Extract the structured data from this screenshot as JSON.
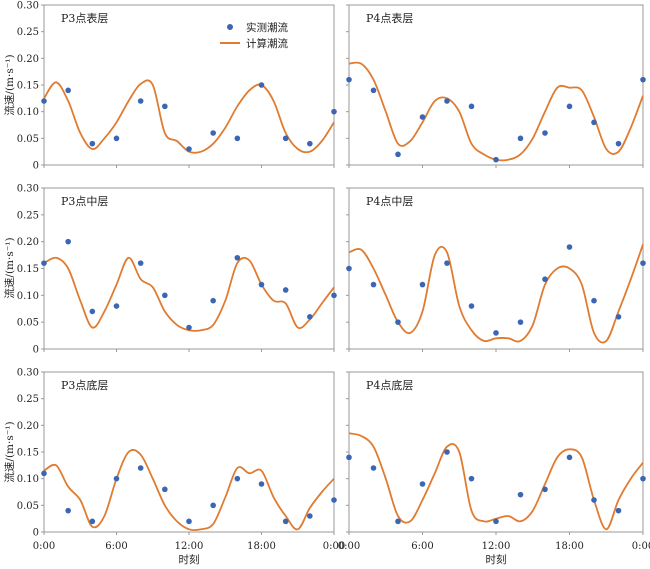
{
  "figure": {
    "legend": {
      "observed": "实测潮流",
      "computed": "计算潮流"
    },
    "ylabel": "流速/(m·s⁻¹)",
    "xlabel": "时刻",
    "colors": {
      "observed": "#3a66b4",
      "computed": "#e07b2f",
      "axis": "#9a9a9a"
    }
  },
  "chart_data": [
    {
      "type": "scatter+line",
      "title": "P3点表层",
      "x_ticks": [
        "0:00",
        "6:00",
        "12:00",
        "18:00",
        "0:00"
      ],
      "x_range_hours": [
        0,
        24
      ],
      "y_ticks": [
        "0",
        "0.05",
        "0.10",
        "0.15",
        "0.20",
        "0.25",
        "0.30"
      ],
      "ylim": [
        0,
        0.3
      ],
      "series": [
        {
          "name": "实测潮流",
          "kind": "scatter",
          "x": [
            0,
            2,
            4,
            6,
            8,
            10,
            12,
            14,
            16,
            18,
            20,
            22,
            24
          ],
          "y": [
            0.12,
            0.14,
            0.04,
            0.05,
            0.12,
            0.11,
            0.03,
            0.06,
            0.05,
            0.15,
            0.05,
            0.04,
            0.1
          ]
        },
        {
          "name": "计算潮流",
          "kind": "line",
          "x": [
            0,
            1,
            2,
            3,
            4,
            5,
            6,
            7,
            8,
            9,
            10,
            11,
            12,
            13,
            14,
            15,
            16,
            17,
            18,
            19,
            20,
            21,
            22,
            23,
            24
          ],
          "y": [
            0.125,
            0.155,
            0.12,
            0.06,
            0.03,
            0.05,
            0.08,
            0.12,
            0.152,
            0.15,
            0.06,
            0.045,
            0.025,
            0.025,
            0.04,
            0.07,
            0.11,
            0.14,
            0.15,
            0.12,
            0.06,
            0.03,
            0.025,
            0.045,
            0.08
          ]
        }
      ]
    },
    {
      "type": "scatter+line",
      "title": "P4点表层",
      "x_ticks": [
        "0:00",
        "6:00",
        "12:00",
        "18:00",
        "0:00"
      ],
      "x_range_hours": [
        0,
        24
      ],
      "y_ticks": [
        "0",
        "0.05",
        "0.10",
        "0.15",
        "0.20",
        "0.25",
        "0.30"
      ],
      "ylim": [
        0,
        0.3
      ],
      "series": [
        {
          "name": "实测潮流",
          "kind": "scatter",
          "x": [
            0,
            2,
            4,
            6,
            8,
            10,
            12,
            14,
            16,
            18,
            20,
            22,
            24
          ],
          "y": [
            0.16,
            0.14,
            0.02,
            0.09,
            0.12,
            0.11,
            0.01,
            0.05,
            0.06,
            0.11,
            0.08,
            0.04,
            0.16
          ]
        },
        {
          "name": "计算潮流",
          "kind": "line",
          "x": [
            0,
            1,
            2,
            3,
            4,
            5,
            6,
            7,
            8,
            9,
            10,
            11,
            12,
            13,
            14,
            15,
            16,
            17,
            18,
            19,
            20,
            21,
            22,
            23,
            24
          ],
          "y": [
            0.19,
            0.19,
            0.16,
            0.1,
            0.04,
            0.045,
            0.08,
            0.12,
            0.125,
            0.1,
            0.04,
            0.02,
            0.01,
            0.01,
            0.02,
            0.05,
            0.1,
            0.145,
            0.145,
            0.14,
            0.09,
            0.03,
            0.025,
            0.07,
            0.13
          ]
        }
      ]
    },
    {
      "type": "scatter+line",
      "title": "P3点中层",
      "x_ticks": [
        "0:00",
        "6:00",
        "12:00",
        "18:00",
        "0:00"
      ],
      "x_range_hours": [
        0,
        24
      ],
      "y_ticks": [
        "0",
        "0.05",
        "0.10",
        "0.15",
        "0.20",
        "0.25",
        "0.30"
      ],
      "ylim": [
        0,
        0.3
      ],
      "series": [
        {
          "name": "实测潮流",
          "kind": "scatter",
          "x": [
            0,
            2,
            4,
            6,
            8,
            10,
            12,
            14,
            16,
            18,
            20,
            22,
            24
          ],
          "y": [
            0.16,
            0.2,
            0.07,
            0.08,
            0.16,
            0.1,
            0.04,
            0.09,
            0.17,
            0.12,
            0.11,
            0.06,
            0.1
          ]
        },
        {
          "name": "计算潮流",
          "kind": "line",
          "x": [
            0,
            1,
            2,
            3,
            4,
            5,
            6,
            7,
            8,
            9,
            10,
            11,
            12,
            13,
            14,
            15,
            16,
            17,
            18,
            19,
            20,
            21,
            22,
            23,
            24
          ],
          "y": [
            0.16,
            0.17,
            0.15,
            0.09,
            0.04,
            0.07,
            0.12,
            0.17,
            0.13,
            0.115,
            0.07,
            0.045,
            0.035,
            0.035,
            0.045,
            0.09,
            0.16,
            0.165,
            0.12,
            0.09,
            0.085,
            0.04,
            0.055,
            0.085,
            0.115
          ]
        }
      ]
    },
    {
      "type": "scatter+line",
      "title": "P4点中层",
      "x_ticks": [
        "0:00",
        "6:00",
        "12:00",
        "18:00",
        "0:00"
      ],
      "x_range_hours": [
        0,
        24
      ],
      "y_ticks": [
        "0",
        "0.05",
        "0.10",
        "0.15",
        "0.20",
        "0.25",
        "0.30"
      ],
      "ylim": [
        0,
        0.3
      ],
      "series": [
        {
          "name": "实测潮流",
          "kind": "scatter",
          "x": [
            0,
            2,
            4,
            6,
            8,
            10,
            12,
            14,
            16,
            18,
            20,
            22,
            24
          ],
          "y": [
            0.15,
            0.12,
            0.05,
            0.12,
            0.16,
            0.08,
            0.03,
            0.05,
            0.13,
            0.19,
            0.09,
            0.06,
            0.16
          ]
        },
        {
          "name": "计算潮流",
          "kind": "line",
          "x": [
            0,
            1,
            2,
            3,
            4,
            5,
            6,
            7,
            8,
            9,
            10,
            11,
            12,
            13,
            14,
            15,
            16,
            17,
            18,
            19,
            20,
            21,
            22,
            23,
            24
          ],
          "y": [
            0.18,
            0.185,
            0.15,
            0.1,
            0.05,
            0.03,
            0.07,
            0.175,
            0.18,
            0.08,
            0.035,
            0.015,
            0.02,
            0.02,
            0.015,
            0.045,
            0.12,
            0.15,
            0.15,
            0.12,
            0.03,
            0.015,
            0.07,
            0.13,
            0.195
          ]
        }
      ]
    },
    {
      "type": "scatter+line",
      "title": "P3点底层",
      "x_ticks": [
        "0:00",
        "6:00",
        "12:00",
        "18:00",
        "0:00"
      ],
      "x_range_hours": [
        0,
        24
      ],
      "y_ticks": [
        "0",
        "0.05",
        "0.10",
        "0.15",
        "0.20",
        "0.25",
        "0.30"
      ],
      "ylim": [
        0,
        0.3
      ],
      "series": [
        {
          "name": "实测潮流",
          "kind": "scatter",
          "x": [
            0,
            2,
            4,
            6,
            8,
            10,
            12,
            14,
            16,
            18,
            20,
            22,
            24
          ],
          "y": [
            0.11,
            0.04,
            0.02,
            0.1,
            0.12,
            0.08,
            0.02,
            0.05,
            0.1,
            0.09,
            0.02,
            0.03,
            0.06
          ]
        },
        {
          "name": "计算潮流",
          "kind": "line",
          "x": [
            0,
            1,
            2,
            3,
            4,
            5,
            6,
            7,
            8,
            9,
            10,
            11,
            12,
            13,
            14,
            15,
            16,
            17,
            18,
            19,
            20,
            21,
            22,
            23,
            24
          ],
          "y": [
            0.115,
            0.125,
            0.085,
            0.06,
            0.01,
            0.03,
            0.1,
            0.15,
            0.145,
            0.1,
            0.05,
            0.02,
            0.005,
            0.005,
            0.015,
            0.065,
            0.12,
            0.11,
            0.115,
            0.065,
            0.03,
            0.005,
            0.045,
            0.075,
            0.1
          ]
        }
      ]
    },
    {
      "type": "scatter+line",
      "title": "P4点底层",
      "x_ticks": [
        "0:00",
        "6:00",
        "12:00",
        "18:00",
        "0:00"
      ],
      "x_range_hours": [
        0,
        24
      ],
      "y_ticks": [
        "0",
        "0.05",
        "0.10",
        "0.15",
        "0.20",
        "0.25",
        "0.30"
      ],
      "ylim": [
        0,
        0.3
      ],
      "series": [
        {
          "name": "实测潮流",
          "kind": "scatter",
          "x": [
            0,
            2,
            4,
            6,
            8,
            10,
            12,
            14,
            16,
            18,
            20,
            22,
            24
          ],
          "y": [
            0.14,
            0.12,
            0.02,
            0.09,
            0.15,
            0.1,
            0.02,
            0.07,
            0.08,
            0.14,
            0.06,
            0.04,
            0.1
          ]
        },
        {
          "name": "计算潮流",
          "kind": "line",
          "x": [
            0,
            1,
            2,
            3,
            4,
            5,
            6,
            7,
            8,
            9,
            10,
            11,
            12,
            13,
            14,
            15,
            16,
            17,
            18,
            19,
            20,
            21,
            22,
            23,
            24
          ],
          "y": [
            0.185,
            0.18,
            0.16,
            0.1,
            0.03,
            0.02,
            0.06,
            0.11,
            0.16,
            0.15,
            0.04,
            0.02,
            0.025,
            0.03,
            0.02,
            0.04,
            0.09,
            0.14,
            0.155,
            0.14,
            0.06,
            0.005,
            0.06,
            0.1,
            0.13
          ]
        }
      ]
    }
  ]
}
